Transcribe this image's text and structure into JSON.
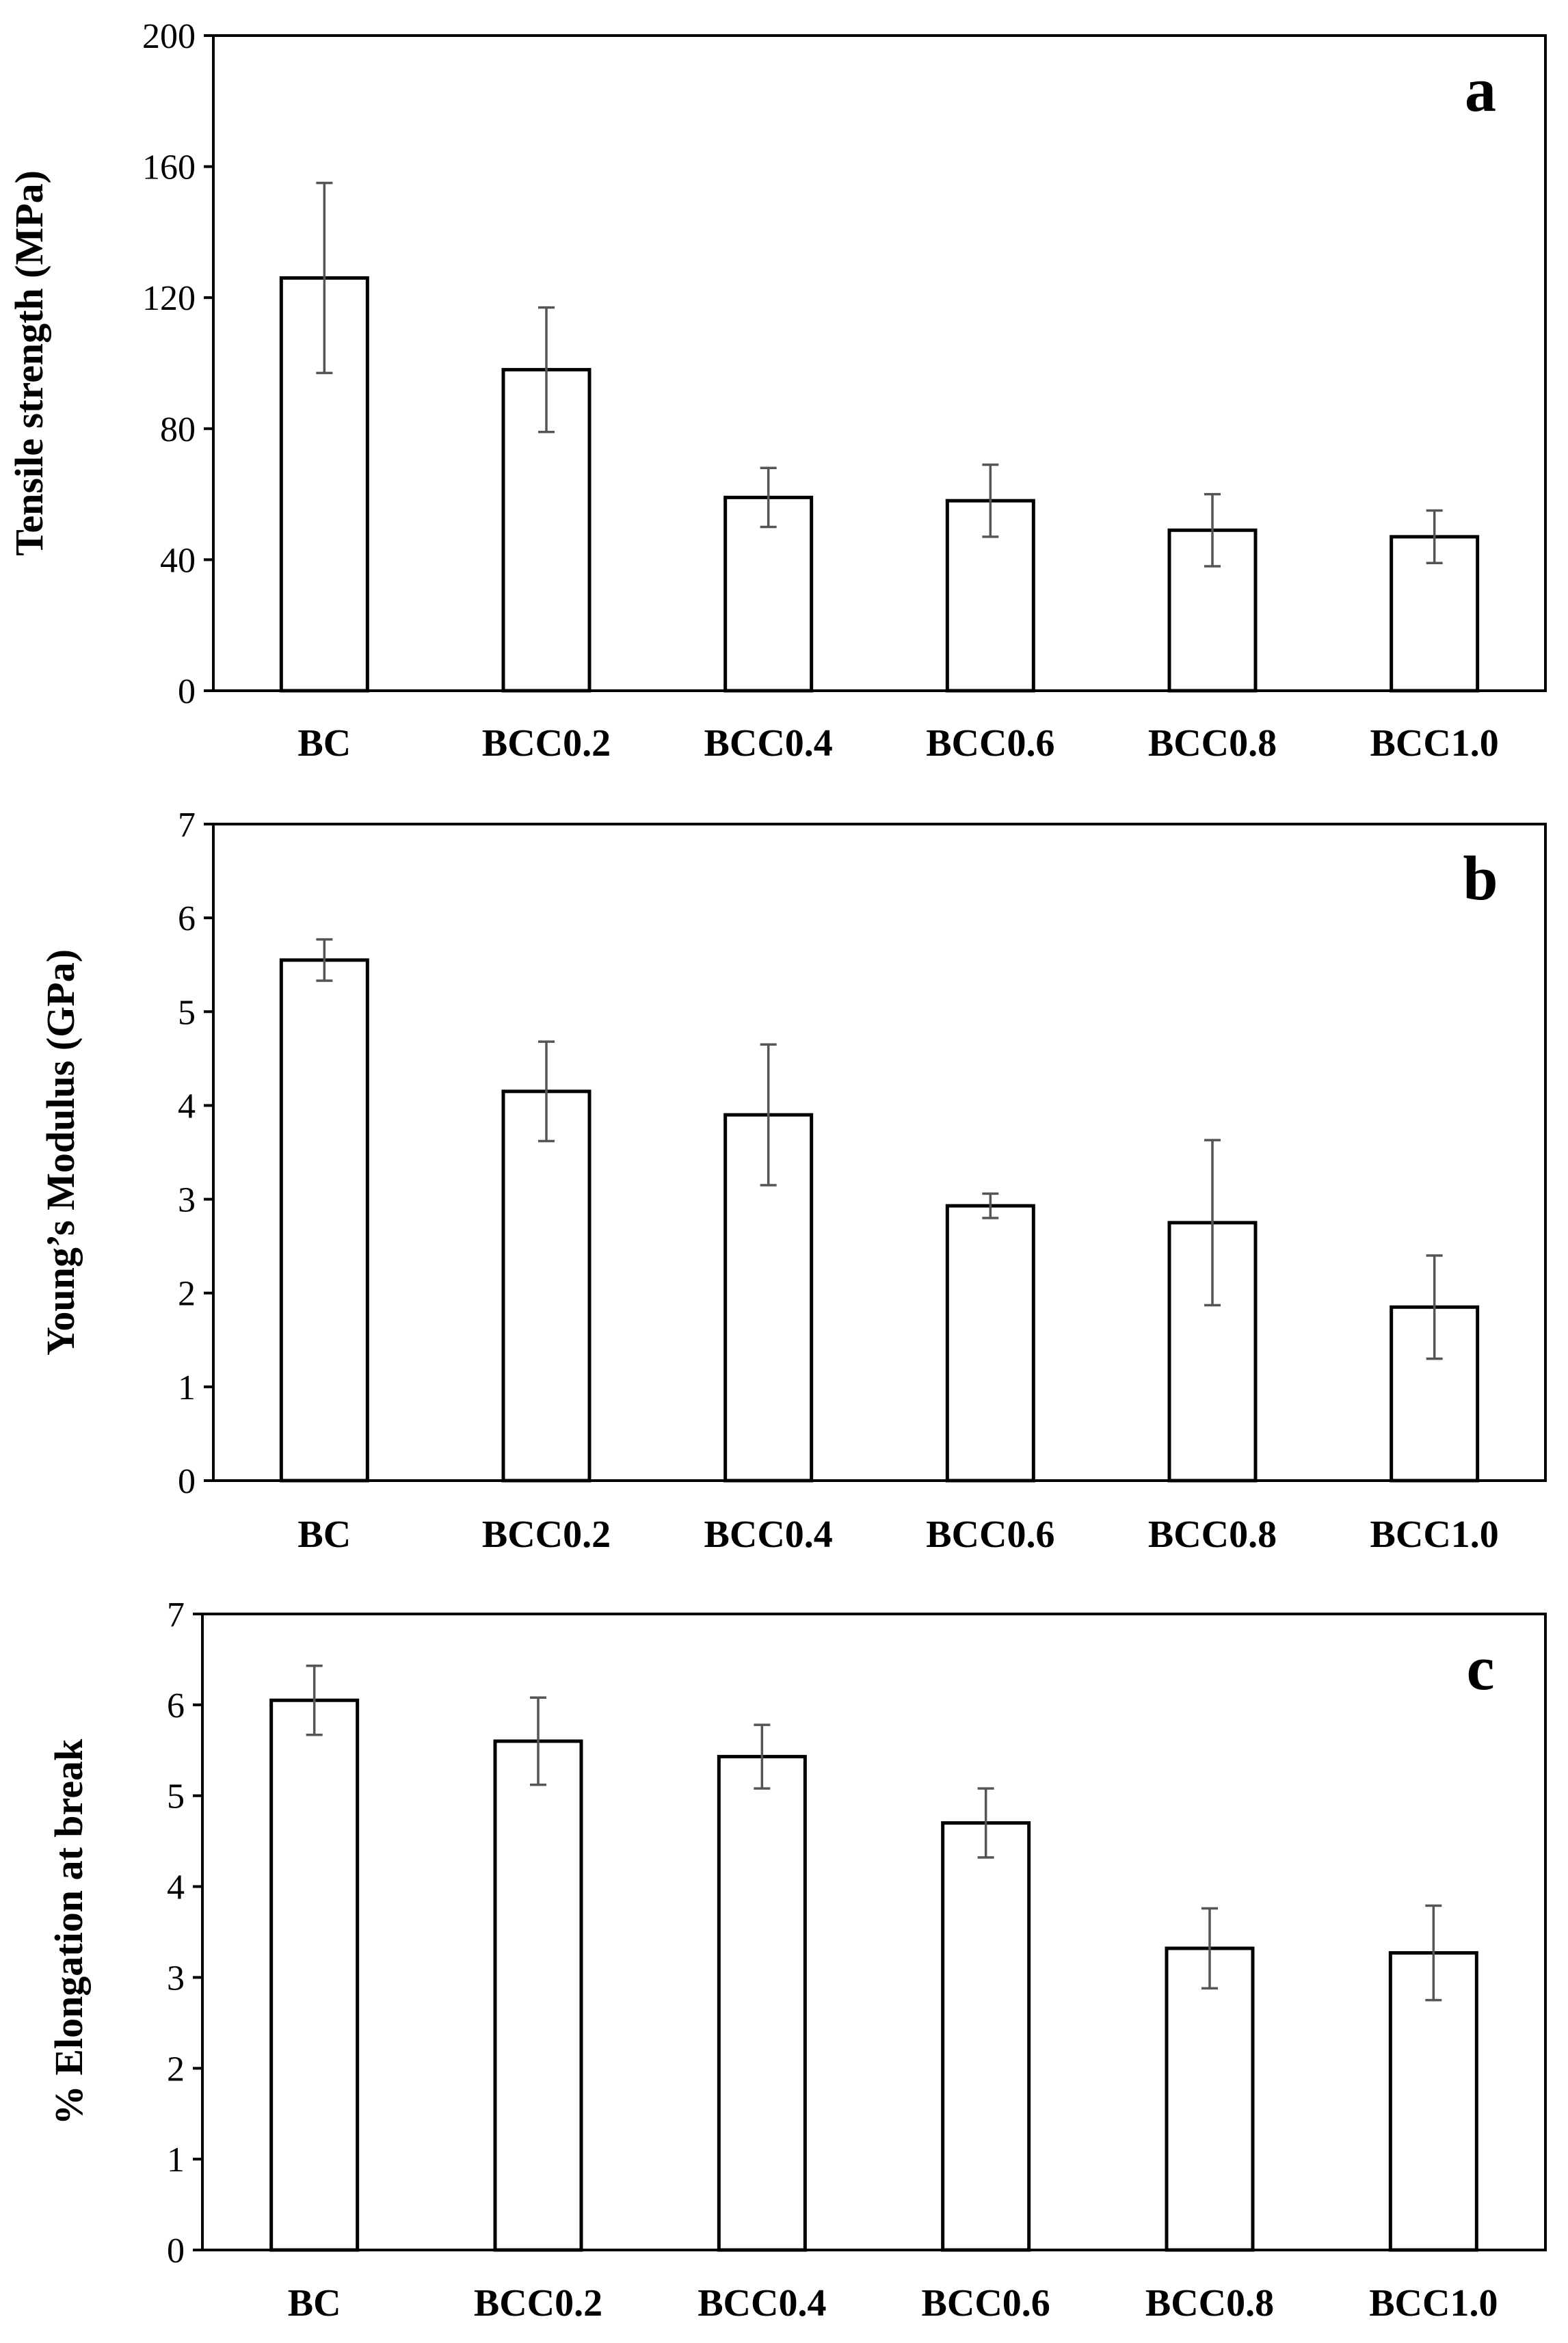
{
  "chart_data": [
    {
      "type": "bar",
      "panel": "a",
      "ylabel": "Tensile strength (MPa)",
      "xlabel": "",
      "ylim": [
        0,
        200
      ],
      "yticks": [
        0,
        40,
        80,
        120,
        160,
        200
      ],
      "categories": [
        "BC",
        "BCC0.2",
        "BCC0.4",
        "BCC0.6",
        "BCC0.8",
        "BCC1.0"
      ],
      "values": [
        126,
        98,
        59,
        58,
        49,
        47
      ],
      "errors": [
        29,
        19,
        9,
        11,
        11,
        8
      ]
    },
    {
      "type": "bar",
      "panel": "b",
      "ylabel": "Young’s Modulus (GPa)",
      "xlabel": "",
      "ylim": [
        0,
        7
      ],
      "yticks": [
        0,
        1,
        2,
        3,
        4,
        5,
        6,
        7
      ],
      "categories": [
        "BC",
        "BCC0.2",
        "BCC0.4",
        "BCC0.6",
        "BCC0.8",
        "BCC1.0"
      ],
      "values": [
        5.55,
        4.15,
        3.9,
        2.93,
        2.75,
        1.85
      ],
      "errors": [
        0.22,
        0.53,
        0.75,
        0.13,
        0.88,
        0.55
      ]
    },
    {
      "type": "bar",
      "panel": "c",
      "ylabel": "% Elongation at break",
      "xlabel": "",
      "ylim": [
        0,
        7
      ],
      "yticks": [
        0,
        1,
        2,
        3,
        4,
        5,
        6,
        7
      ],
      "categories": [
        "BC",
        "BCC0.2",
        "BCC0.4",
        "BCC0.6",
        "BCC0.8",
        "BCC1.0"
      ],
      "values": [
        6.05,
        5.6,
        5.43,
        4.7,
        3.32,
        3.27
      ],
      "errors": [
        0.38,
        0.48,
        0.35,
        0.38,
        0.44,
        0.52
      ]
    }
  ]
}
